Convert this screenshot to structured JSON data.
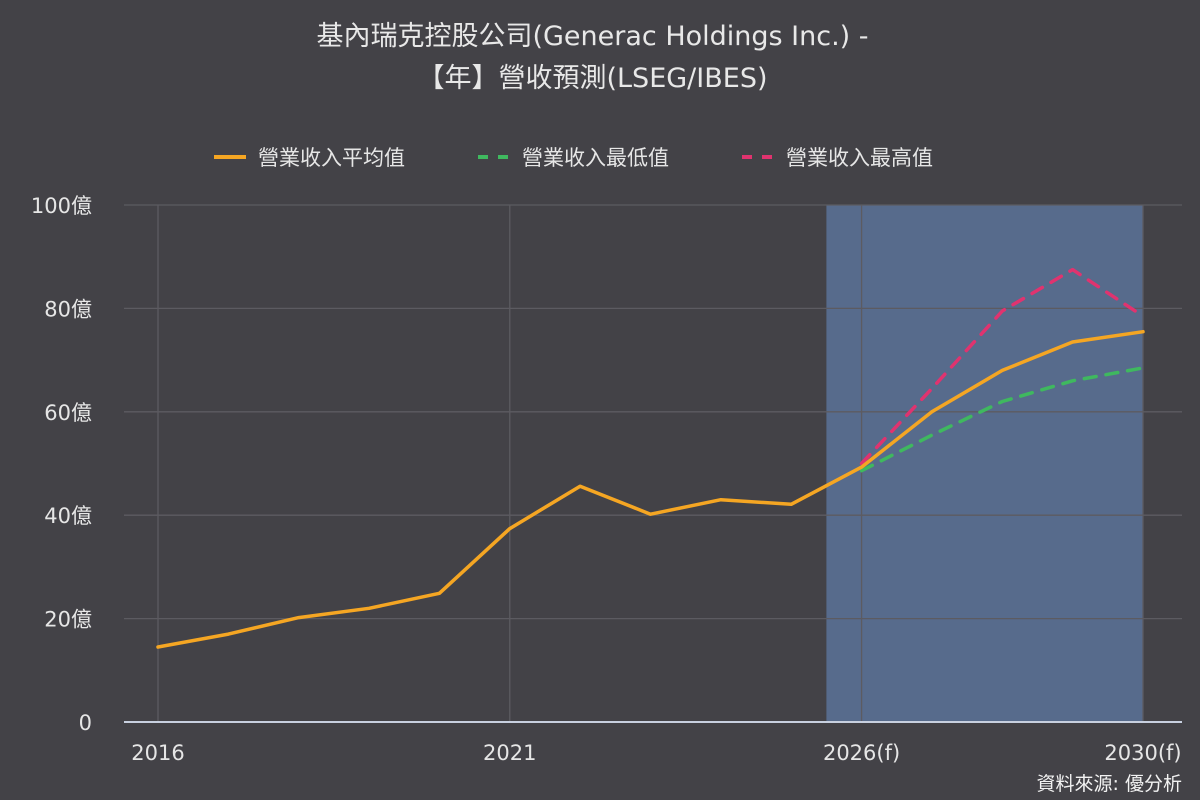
{
  "title_line1": "基內瑞克控股公司(Generac Holdings Inc.) -",
  "title_line2": "【年】營收預測(LSEG/IBES)",
  "source": "資料來源: 優分析",
  "colors": {
    "avg": "#f5a623",
    "low": "#3fb85f",
    "high": "#e0336f",
    "forecast_band": "#5a7299",
    "grid": "#5c5b61",
    "axis": "#c8d0e0"
  },
  "chart_data": {
    "type": "line",
    "title": "基內瑞克控股公司(Generac Holdings Inc.) - 【年】營收預測(LSEG/IBES)",
    "xlabel": "",
    "ylabel": "",
    "ylim": [
      0,
      100
    ],
    "y_ticks": [
      "0",
      "20億",
      "40億",
      "60億",
      "80億",
      "100億"
    ],
    "x_ticks": [
      "2016",
      "2021",
      "2026(f)",
      "2030(f)"
    ],
    "forecast_region": [
      "2025.5",
      "2030"
    ],
    "legend_position": "top-center",
    "series": [
      {
        "name": "營業收入平均值",
        "style": "solid",
        "x": [
          2016,
          2017,
          2018,
          2019,
          2020,
          2021,
          2022,
          2023,
          2024,
          2025,
          2026,
          2027,
          2028,
          2029,
          2030
        ],
        "values": [
          14.5,
          17.0,
          20.2,
          22.0,
          24.9,
          37.4,
          45.6,
          40.2,
          43.0,
          42.1,
          49.3,
          60.0,
          68.0,
          73.5,
          75.5
        ]
      },
      {
        "name": "營業收入最低值",
        "style": "dashed",
        "x": [
          2026,
          2027,
          2028,
          2029,
          2030
        ],
        "values": [
          48.6,
          55.5,
          62.0,
          66.0,
          68.5
        ]
      },
      {
        "name": "營業收入最高值",
        "style": "dashed",
        "x": [
          2026,
          2027,
          2028,
          2029,
          2030
        ],
        "values": [
          50.0,
          64.5,
          79.5,
          87.5,
          78.5
        ]
      }
    ]
  }
}
